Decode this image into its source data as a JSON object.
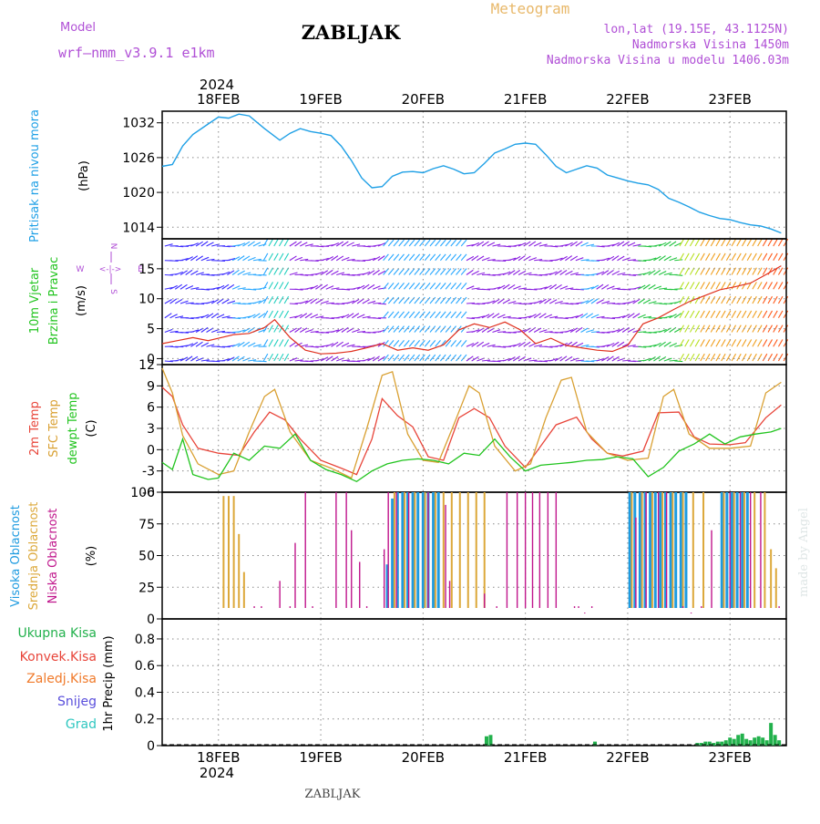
{
  "header": {
    "model_label": "Model",
    "model_name": "wrf–nmm_v3.9.1  e1km",
    "station": "ZABLJAK",
    "meteogram_label": "Meteogram",
    "lonlat": "lon,lat (19.15E, 43.1125N)",
    "altitude": "Nadmorska Visina 1450m",
    "model_altitude": "Nadmorska Visina u modelu 1406.03m",
    "year": "2024",
    "footer_station": "ZABLJAK",
    "watermark": "made by Angel"
  },
  "colors": {
    "pressure": "#1fa0e6",
    "temp2m": "#e8453a",
    "sfc": "#d9a032",
    "dewpt": "#22c41f",
    "high_cloud": "#1e9be0",
    "mid_cloud": "#dca83a",
    "low_cloud": "#c0168c",
    "total_precip": "#22b14c",
    "conv_precip": "#e8453a",
    "frz_precip": "#f07a2a",
    "snow": "#5a4fdc",
    "graupel": "#2fc7c0",
    "grid": "#8a8a8a",
    "wind_low": "#3a2aff",
    "wind_mid": "#8a1fe0",
    "wind_high": "#ff8a00"
  },
  "chart_data": [
    {
      "type": "line",
      "panel": "pressure",
      "ylabel": "(hPa)",
      "side_labels": [
        "Pritisak na nivou mora"
      ],
      "yticks": [
        1014,
        1020,
        1026,
        1032
      ],
      "ylim": [
        1012,
        1034
      ],
      "x_day_labels": [
        "18FEB",
        "19FEB",
        "20FEB",
        "21FEB",
        "22FEB",
        "23FEB"
      ],
      "xlim_days": [
        -0.55,
        5.55
      ],
      "grid": "dotted",
      "series": [
        {
          "color_key": "pressure",
          "x": [
            -0.55,
            -0.45,
            -0.35,
            -0.25,
            -0.1,
            0.0,
            0.1,
            0.2,
            0.3,
            0.45,
            0.6,
            0.7,
            0.8,
            0.9,
            1.0,
            1.1,
            1.2,
            1.3,
            1.4,
            1.5,
            1.6,
            1.7,
            1.8,
            1.9,
            2.0,
            2.1,
            2.2,
            2.3,
            2.4,
            2.5,
            2.6,
            2.7,
            2.8,
            2.9,
            3.0,
            3.1,
            3.2,
            3.3,
            3.4,
            3.5,
            3.6,
            3.7,
            3.8,
            3.9,
            4.0,
            4.1,
            4.2,
            4.3,
            4.4,
            4.5,
            4.6,
            4.7,
            4.8,
            4.9,
            5.0,
            5.1,
            5.2,
            5.3,
            5.4,
            5.5
          ],
          "y": [
            1024.5,
            1024.8,
            1028,
            1030,
            1031.8,
            1033,
            1032.8,
            1033.5,
            1033.2,
            1031,
            1029,
            1030.2,
            1031,
            1030.5,
            1030.2,
            1029.8,
            1028,
            1025.5,
            1022.5,
            1020.8,
            1021,
            1022.8,
            1023.5,
            1023.6,
            1023.4,
            1024.1,
            1024.6,
            1024,
            1023.2,
            1023.4,
            1025,
            1026.8,
            1027.5,
            1028.3,
            1028.5,
            1028.3,
            1026.5,
            1024.5,
            1023.4,
            1024,
            1024.6,
            1024.2,
            1023,
            1022.5,
            1022,
            1021.6,
            1021.3,
            1020.5,
            1019,
            1018.3,
            1017.5,
            1016.6,
            1016,
            1015.5,
            1015.3,
            1014.8,
            1014.4,
            1014.2,
            1013.7,
            1013
          ]
        }
      ]
    },
    {
      "type": "line",
      "panel": "wind",
      "ylabel": "(m/s)",
      "side_labels": [
        "10m Vjetar",
        "Brzina i Pravac"
      ],
      "compass": {
        "n": "N",
        "e": "E",
        "s": "S",
        "w": "W"
      },
      "yticks": [
        0,
        5,
        10,
        15
      ],
      "ylim": [
        -1,
        20
      ],
      "series": [
        {
          "name": "speed",
          "color": "#e0301e",
          "x": [
            -0.55,
            -0.4,
            -0.25,
            -0.1,
            0.0,
            0.15,
            0.3,
            0.45,
            0.55,
            0.7,
            0.85,
            1.0,
            1.15,
            1.3,
            1.45,
            1.6,
            1.75,
            1.9,
            2.05,
            2.2,
            2.35,
            2.5,
            2.65,
            2.8,
            2.95,
            3.1,
            3.25,
            3.4,
            3.55,
            3.7,
            3.85,
            4.0,
            4.15,
            4.3,
            4.45,
            4.6,
            4.75,
            4.9,
            5.05,
            5.2,
            5.35,
            5.5
          ],
          "y": [
            2.5,
            3,
            3.5,
            3,
            3.4,
            4,
            4.2,
            5.2,
            6.5,
            3.5,
            1.4,
            0.8,
            0.9,
            1.2,
            1.8,
            2.5,
            1.4,
            1.8,
            1.4,
            2.3,
            4.8,
            5.8,
            5.2,
            6.1,
            4.8,
            2.5,
            3.4,
            2.2,
            1.8,
            1.4,
            1.2,
            2.2,
            5.8,
            6.8,
            8.2,
            9.5,
            10.5,
            11.5,
            12,
            12.6,
            14,
            15.5
          ]
        }
      ]
    },
    {
      "type": "line",
      "panel": "temperature",
      "ylabel": "(C)",
      "side_labels": [
        "2m Temp",
        "SFC Temp",
        "dewpt Temp"
      ],
      "yticks": [
        -6,
        -3,
        0,
        3,
        6,
        9,
        12
      ],
      "ylim": [
        -6,
        12
      ],
      "series": [
        {
          "name": "2m Temp",
          "color_key": "temp2m",
          "x": [
            -0.55,
            -0.45,
            -0.35,
            -0.2,
            0.0,
            0.2,
            0.35,
            0.5,
            0.65,
            0.8,
            1.0,
            1.2,
            1.35,
            1.5,
            1.6,
            1.75,
            1.9,
            2.05,
            2.2,
            2.35,
            2.5,
            2.65,
            2.8,
            3.0,
            3.15,
            3.3,
            3.5,
            3.65,
            3.8,
            3.95,
            4.15,
            4.3,
            4.5,
            4.65,
            4.8,
            5.0,
            5.15,
            5.35,
            5.5
          ],
          "y": [
            8.8,
            7.5,
            3.5,
            0.2,
            -0.5,
            -0.8,
            2.5,
            5.3,
            4.2,
            1.5,
            -1.5,
            -2.6,
            -3.5,
            1.5,
            7.2,
            4.8,
            3.2,
            -1,
            -1.5,
            4.5,
            5.8,
            4.5,
            0.5,
            -2.5,
            0.5,
            3.5,
            4.6,
            1.5,
            -0.5,
            -0.9,
            -0.2,
            5.2,
            5.3,
            1.8,
            0.8,
            0.7,
            1,
            4.5,
            6.3
          ]
        },
        {
          "name": "SFC Temp",
          "color_key": "sfc",
          "x": [
            -0.55,
            -0.45,
            -0.35,
            -0.2,
            0.0,
            0.15,
            0.3,
            0.45,
            0.55,
            0.7,
            0.9,
            1.1,
            1.3,
            1.45,
            1.6,
            1.7,
            1.85,
            2.0,
            2.15,
            2.3,
            2.45,
            2.55,
            2.7,
            2.9,
            3.05,
            3.2,
            3.35,
            3.45,
            3.6,
            3.8,
            4.0,
            4.2,
            4.35,
            4.45,
            4.6,
            4.8,
            5.0,
            5.2,
            5.35,
            5.5
          ],
          "y": [
            11.5,
            8,
            2,
            -2,
            -3.5,
            -3,
            2.5,
            7.5,
            8.5,
            2.5,
            -1.5,
            -2.6,
            -4,
            3,
            10.5,
            11,
            2.2,
            -1.5,
            -1.8,
            3.5,
            9,
            8,
            0.5,
            -3,
            -2,
            4.5,
            9.8,
            10.2,
            2.5,
            -0.5,
            -1.5,
            -1.2,
            7.5,
            8.5,
            2.2,
            0.2,
            0.2,
            0.5,
            8,
            9.5
          ]
        },
        {
          "name": "dewpt Temp",
          "color_key": "dewpt",
          "x": [
            -0.55,
            -0.45,
            -0.35,
            -0.25,
            -0.1,
            0.0,
            0.15,
            0.3,
            0.45,
            0.6,
            0.75,
            0.9,
            1.05,
            1.2,
            1.35,
            1.5,
            1.65,
            1.8,
            1.95,
            2.1,
            2.25,
            2.4,
            2.55,
            2.7,
            2.85,
            3.0,
            3.15,
            3.3,
            3.45,
            3.6,
            3.75,
            3.9,
            4.05,
            4.2,
            4.35,
            4.5,
            4.65,
            4.8,
            4.95,
            5.1,
            5.25,
            5.4,
            5.5
          ],
          "y": [
            -1.8,
            -2.8,
            1.5,
            -3.5,
            -4.2,
            -4,
            -0.5,
            -1.5,
            0.5,
            0.2,
            2.2,
            -1.5,
            -2.8,
            -3.5,
            -4.5,
            -3,
            -2,
            -1.5,
            -1.3,
            -1.5,
            -2,
            -0.5,
            -0.8,
            1.5,
            -1,
            -3,
            -2.2,
            -2,
            -1.8,
            -1.5,
            -1.4,
            -1,
            -1.3,
            -3.8,
            -2.5,
            -0.2,
            0.8,
            2.2,
            0.8,
            1.8,
            2.2,
            2.5,
            3
          ]
        }
      ]
    },
    {
      "type": "bar",
      "panel": "clouds",
      "ylabel": "(%)",
      "side_labels": [
        "Visoka Oblacnost",
        "Srednja Oblacnost",
        "Niska Oblacnost"
      ],
      "yticks": [
        0,
        25,
        50,
        75,
        100
      ],
      "ylim": [
        0,
        100
      ],
      "series": [
        {
          "name": "Visoka Oblacnost",
          "color_key": "high_cloud",
          "x": [
            1.65,
            1.7,
            1.75,
            1.8,
            1.85,
            1.9,
            1.95,
            2.0,
            2.05,
            2.1,
            2.15,
            4.02,
            4.07,
            4.12,
            4.17,
            4.22,
            4.27,
            4.32,
            4.37,
            4.42,
            4.47,
            4.52,
            4.57,
            4.92,
            4.97,
            5.02,
            5.07,
            5.12,
            5.17
          ],
          "y": [
            43,
            95,
            100,
            100,
            100,
            100,
            100,
            100,
            100,
            100,
            100,
            100,
            100,
            100,
            100,
            100,
            100,
            100,
            100,
            100,
            100,
            100,
            100,
            100,
            100,
            100,
            100,
            100,
            100
          ]
        },
        {
          "name": "Srednja Oblacnost",
          "color_key": "mid_cloud",
          "x": [
            0.05,
            0.1,
            0.15,
            0.2,
            0.25,
            1.72,
            1.82,
            1.92,
            2.02,
            2.12,
            2.2,
            2.28,
            2.36,
            2.44,
            2.52,
            2.6,
            4.04,
            4.14,
            4.24,
            4.34,
            4.44,
            4.54,
            4.64,
            4.74,
            4.94,
            5.04,
            5.14,
            5.24,
            5.34,
            5.4,
            5.45
          ],
          "y": [
            97,
            97,
            97,
            67,
            37,
            100,
            100,
            100,
            100,
            100,
            100,
            100,
            100,
            100,
            100,
            100,
            100,
            100,
            100,
            100,
            100,
            100,
            100,
            100,
            100,
            100,
            100,
            100,
            100,
            55,
            40
          ]
        },
        {
          "name": "Niska Oblacnost",
          "color_key": "low_cloud",
          "x": [
            0.35,
            0.42,
            0.6,
            0.7,
            0.75,
            0.85,
            0.92,
            1.15,
            1.25,
            1.3,
            1.38,
            1.45,
            1.62,
            1.66,
            1.74,
            1.86,
            2.05,
            2.22,
            2.26,
            2.6,
            2.72,
            2.82,
            2.92,
            3.0,
            3.07,
            3.14,
            3.22,
            3.3,
            3.48,
            3.52,
            3.58,
            3.65,
            4.08,
            4.18,
            4.3,
            4.38,
            4.54,
            4.62,
            4.72,
            4.82,
            5.0,
            5.1,
            5.2,
            5.3,
            5.48
          ],
          "y": [
            10,
            10,
            30,
            10,
            60,
            100,
            10,
            100,
            100,
            70,
            45,
            10,
            55,
            100,
            100,
            100,
            100,
            90,
            30,
            20,
            10,
            100,
            100,
            100,
            100,
            100,
            100,
            100,
            10,
            10,
            5,
            10,
            80,
            100,
            100,
            100,
            10,
            5,
            10,
            70,
            100,
            100,
            100,
            100,
            10
          ]
        }
      ]
    },
    {
      "type": "bar",
      "panel": "precipitation",
      "ylabel": "1hr Precip (mm)",
      "legend": [
        "Ukupna  Kisa",
        "Konvek.Kisa",
        "Zaledj.Kisa",
        "Snijeg",
        "Grad"
      ],
      "yticks": [
        0,
        0.2,
        0.4,
        0.6,
        0.8
      ],
      "ylim": [
        0,
        0.95
      ],
      "series": [
        {
          "name": "Ukupna  Kisa",
          "color_key": "total_precip",
          "x": [
            2.62,
            2.66,
            3.68,
            4.68,
            4.72,
            4.76,
            4.8,
            4.84,
            4.88,
            4.92,
            4.96,
            5.0,
            5.04,
            5.08,
            5.12,
            5.16,
            5.2,
            5.24,
            5.28,
            5.32,
            5.36,
            5.4,
            5.44,
            5.48
          ],
          "y": [
            0.07,
            0.08,
            0.03,
            0.02,
            0.02,
            0.03,
            0.03,
            0.02,
            0.03,
            0.03,
            0.04,
            0.06,
            0.05,
            0.08,
            0.09,
            0.05,
            0.04,
            0.06,
            0.07,
            0.06,
            0.04,
            0.17,
            0.08,
            0.04
          ]
        }
      ]
    }
  ]
}
